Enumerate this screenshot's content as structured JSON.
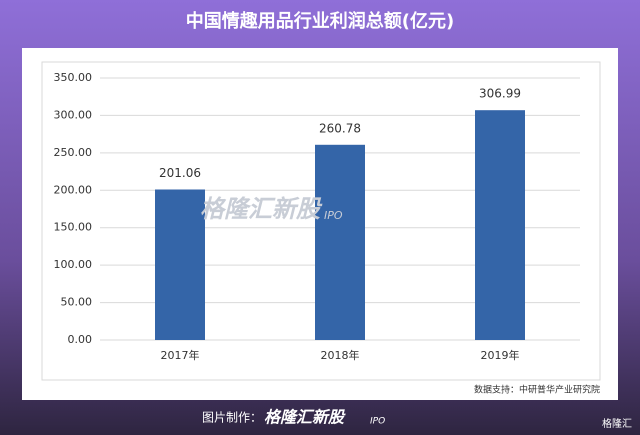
{
  "chart_data": {
    "type": "bar",
    "title": "中国情趣用品行业利润总额(亿元)",
    "categories": [
      "2017年",
      "2018年",
      "2019年"
    ],
    "values": [
      201.06,
      260.78,
      306.99
    ],
    "color": "#3465a8",
    "ylim": [
      0,
      350
    ],
    "yticks": [
      {
        "value": 0,
        "label": "0.00"
      },
      {
        "value": 50,
        "label": "50.00"
      },
      {
        "value": 100,
        "label": "100.00"
      },
      {
        "value": 150,
        "label": "150.00"
      },
      {
        "value": 200,
        "label": "200.00"
      },
      {
        "value": 250,
        "label": "250.00"
      },
      {
        "value": 300,
        "label": "300.00"
      },
      {
        "value": 350,
        "label": "350.00"
      }
    ],
    "grid": true,
    "source": "数据支持：中研普华产业研究院"
  },
  "watermark": {
    "brand": "格隆汇新股",
    "suffix": "IPO"
  },
  "footer": {
    "label": "图片制作：",
    "brand": "格隆汇新股",
    "suffix": "IPO"
  },
  "logo": "格隆汇"
}
